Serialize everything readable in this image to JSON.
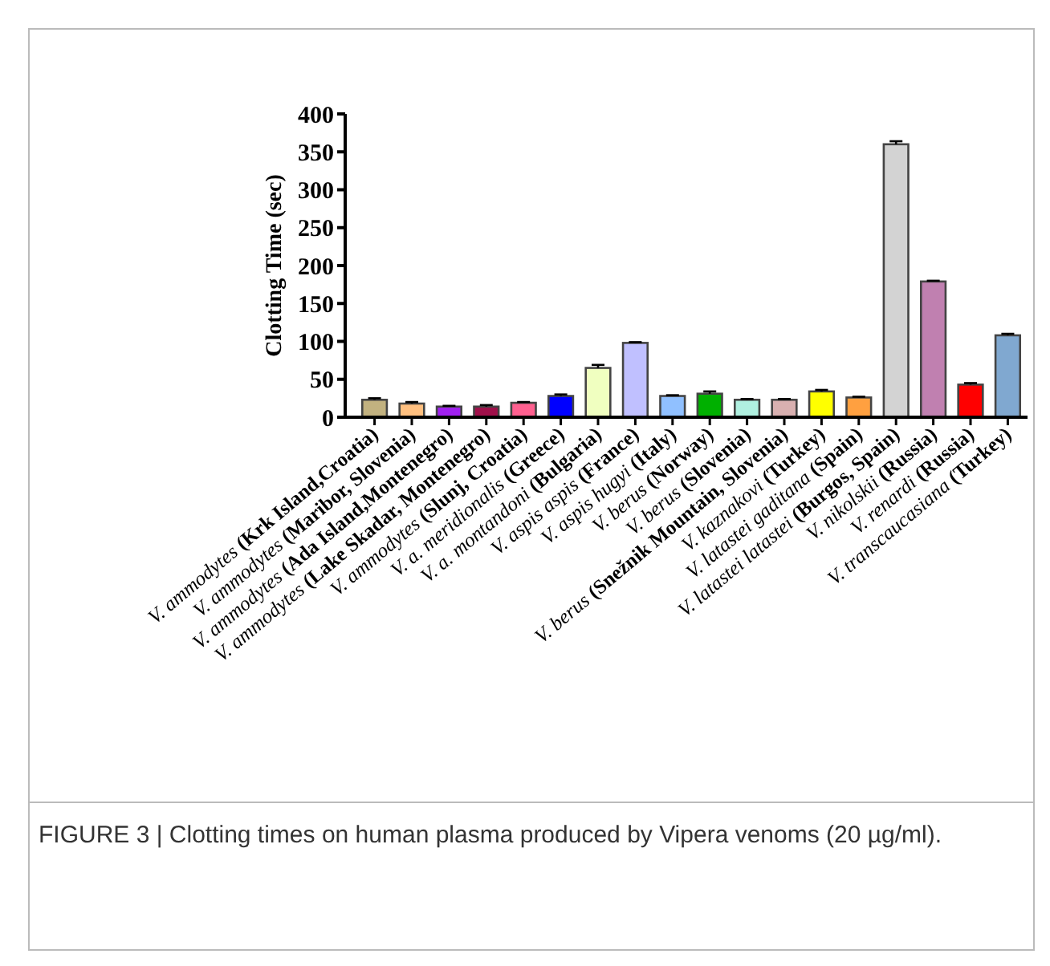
{
  "chart_data": {
    "type": "bar",
    "ylabel": "Clotting Time (sec)",
    "categories": [
      "V. ammodytes (Krk Island,Croatia)",
      "V. ammodytes (Maribor, Slovenia)",
      "V. ammodytes (Ada Island,Montenegro)",
      "V. ammodytes (Lake Skadar, Montenegro)",
      "V. ammodytes (Slunj, Croatia)",
      "V. a. meridionalis (Greece)",
      "V. a. montandoni (Bulgaria)",
      "V. aspis aspis (France)",
      "V. aspis hugyi (Italy)",
      "V. berus (Norway)",
      "V. berus (Slovenia)",
      "V. berus (Snežnik Mountain, Slovenia)",
      "V. kaznakovi (Turkey)",
      "V. latastei gaditana (Spain)",
      "V. latastei latastei (Burgos, Spain)",
      "V. nikolskii (Russia)",
      "V. renardi (Russia)",
      "V. transcaucasiana (Turkey)"
    ],
    "values": [
      23,
      18,
      14,
      14,
      19,
      28,
      65,
      98,
      28,
      31,
      23,
      23,
      34,
      26,
      360,
      179,
      43,
      108
    ],
    "errors": [
      2,
      2,
      1,
      2,
      1,
      2,
      4,
      1,
      1,
      3,
      1,
      1,
      2,
      1,
      4,
      1,
      2,
      2
    ],
    "colors": [
      "#c2b280",
      "#ffc080",
      "#a020f0",
      "#a0104a",
      "#ff6090",
      "#0000ff",
      "#f0ffc0",
      "#c0c0ff",
      "#90c0ff",
      "#00b000",
      "#b0f0e0",
      "#d8b0b0",
      "#ffff00",
      "#ffa040",
      "#d3d3d3",
      "#c080b0",
      "#ff0000",
      "#80a8d0"
    ],
    "ylim": [
      0,
      400
    ],
    "yticks": [
      0,
      50,
      100,
      150,
      200,
      250,
      300,
      350,
      400
    ],
    "grid": false,
    "annotations": [
      "FIGURE 3 | Clotting times on human plasma produced by Vipera venoms (20 µg/ml)."
    ]
  }
}
